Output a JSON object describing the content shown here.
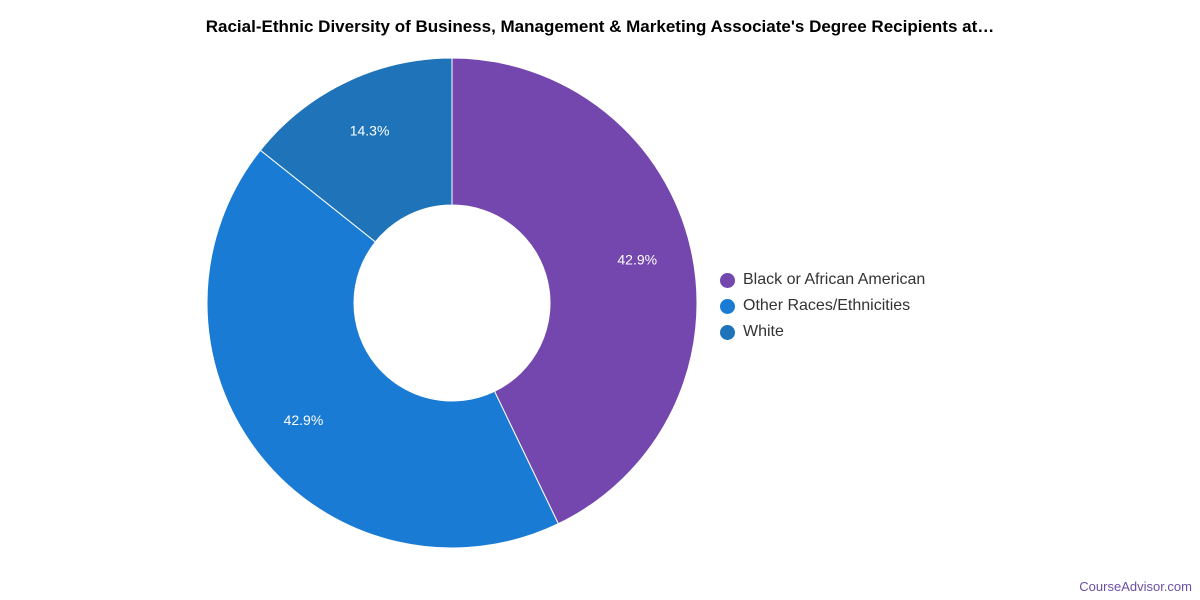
{
  "chart_data": {
    "type": "pie",
    "title": "Racial-Ethnic Diversity of Business, Management & Marketing Associate's Degree Recipients at…",
    "slices": [
      {
        "name": "Black or African American",
        "value": 42.9,
        "label": "42.9%",
        "color": "#7447ae"
      },
      {
        "name": "Other Races/Ethnicities",
        "value": 42.9,
        "label": "42.9%",
        "color": "#197bd4"
      },
      {
        "name": "White",
        "value": 14.3,
        "label": "14.3%",
        "color": "#1f74b9"
      }
    ],
    "donut": true,
    "legend_position": "right"
  },
  "watermark": "CourseAdvisor.com"
}
